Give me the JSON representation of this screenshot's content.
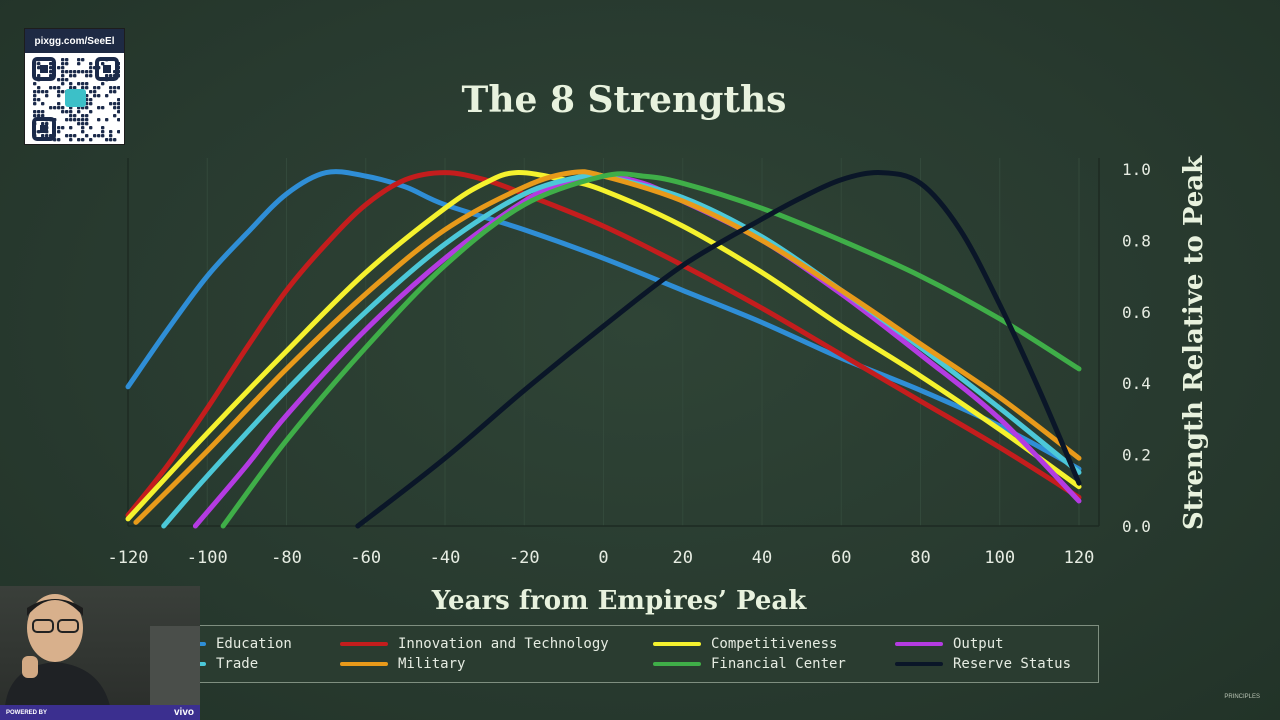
{
  "qr": {
    "url": "pixgg.com/SeeEl"
  },
  "chart_data": {
    "type": "line",
    "title": "The 8 Strengths",
    "xlabel": "Years from Empires’ Peak",
    "ylabel": "Strength Relative to Peak",
    "xlim": [
      -120,
      120
    ],
    "ylim": [
      0,
      1.0
    ],
    "xticks": [
      "-120",
      "-100",
      "-80",
      "-60",
      "-40",
      "-20",
      "0",
      "20",
      "40",
      "60",
      "80",
      "100",
      "120"
    ],
    "yticks": [
      "0.0",
      "0.2",
      "0.4",
      "0.6",
      "0.8",
      "1.0"
    ],
    "legend_position": "bottom",
    "series": [
      {
        "name": "Education",
        "color": "#2f8ed6",
        "x": [
          -120,
          -110,
          -100,
          -90,
          -80,
          -70,
          -60,
          -50,
          -40,
          -20,
          0,
          20,
          40,
          60,
          80,
          100,
          120
        ],
        "y": [
          0.39,
          0.55,
          0.7,
          0.82,
          0.93,
          0.99,
          0.98,
          0.95,
          0.9,
          0.83,
          0.75,
          0.66,
          0.57,
          0.47,
          0.38,
          0.28,
          0.16
        ]
      },
      {
        "name": "Innovation and Technology",
        "color": "#c41d1d",
        "x": [
          -120,
          -110,
          -100,
          -90,
          -80,
          -70,
          -60,
          -50,
          -40,
          -30,
          -20,
          0,
          20,
          40,
          60,
          80,
          100,
          120
        ],
        "y": [
          0.03,
          0.17,
          0.33,
          0.5,
          0.66,
          0.79,
          0.9,
          0.97,
          0.99,
          0.97,
          0.93,
          0.84,
          0.73,
          0.61,
          0.48,
          0.35,
          0.22,
          0.08
        ]
      },
      {
        "name": "Competitiveness",
        "color": "#f5f22e",
        "x": [
          -120,
          -100,
          -80,
          -60,
          -40,
          -30,
          -22,
          -10,
          0,
          20,
          40,
          60,
          80,
          100,
          120
        ],
        "y": [
          0.02,
          0.26,
          0.49,
          0.71,
          0.89,
          0.96,
          0.99,
          0.97,
          0.94,
          0.84,
          0.71,
          0.56,
          0.42,
          0.27,
          0.11
        ]
      },
      {
        "name": "Output",
        "color": "#b43be2",
        "x": [
          -103,
          -90,
          -80,
          -60,
          -40,
          -20,
          -10,
          0,
          10,
          20,
          40,
          60,
          80,
          100,
          120
        ],
        "y": [
          0.0,
          0.17,
          0.31,
          0.55,
          0.75,
          0.91,
          0.96,
          0.98,
          0.96,
          0.91,
          0.8,
          0.65,
          0.48,
          0.3,
          0.07
        ]
      },
      {
        "name": "Trade",
        "color": "#4cc8d8",
        "x": [
          -111,
          -100,
          -80,
          -60,
          -40,
          -20,
          -5,
          0,
          20,
          40,
          60,
          80,
          100,
          120
        ],
        "y": [
          0.0,
          0.14,
          0.38,
          0.6,
          0.79,
          0.93,
          0.98,
          0.98,
          0.92,
          0.81,
          0.66,
          0.5,
          0.33,
          0.15
        ]
      },
      {
        "name": "Military",
        "color": "#e89a1a",
        "x": [
          -118,
          -100,
          -80,
          -60,
          -40,
          -20,
          -8,
          0,
          20,
          40,
          60,
          80,
          100,
          120
        ],
        "y": [
          0.01,
          0.21,
          0.44,
          0.65,
          0.83,
          0.95,
          0.99,
          0.98,
          0.91,
          0.8,
          0.66,
          0.51,
          0.36,
          0.19
        ]
      },
      {
        "name": "Financial Center",
        "color": "#3fae48",
        "x": [
          -96,
          -80,
          -60,
          -40,
          -20,
          0,
          10,
          20,
          40,
          60,
          80,
          100,
          120
        ],
        "y": [
          0.0,
          0.24,
          0.5,
          0.73,
          0.9,
          0.98,
          0.98,
          0.96,
          0.89,
          0.8,
          0.7,
          0.58,
          0.44
        ]
      },
      {
        "name": "Reserve Status",
        "color": "#0a1628",
        "x": [
          -62,
          -40,
          -20,
          0,
          20,
          40,
          50,
          60,
          70,
          80,
          90,
          100,
          110,
          120
        ],
        "y": [
          0.0,
          0.19,
          0.38,
          0.56,
          0.73,
          0.86,
          0.92,
          0.97,
          0.99,
          0.96,
          0.83,
          0.62,
          0.38,
          0.12
        ]
      }
    ]
  },
  "webcam": {
    "powered_by": "POWERED BY",
    "brand": "vivo"
  },
  "footer": {
    "mark": "PRINCIPLES"
  }
}
